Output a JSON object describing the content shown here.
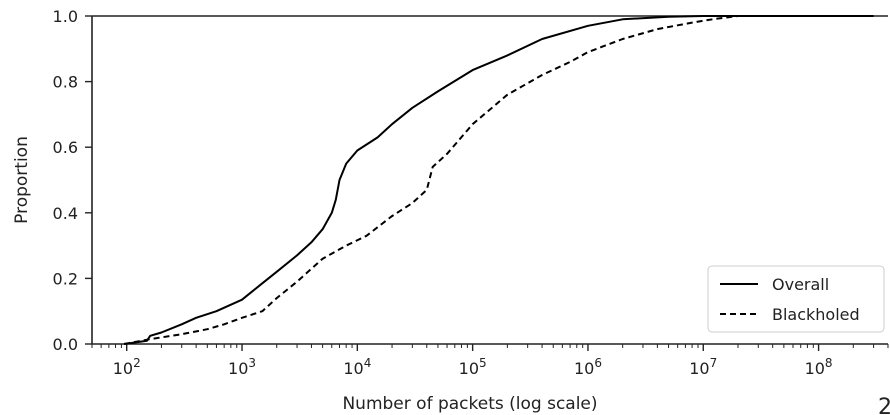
{
  "chart_data": {
    "type": "line",
    "title": "",
    "xlabel": "Number of packets (log scale)",
    "ylabel": "Proportion",
    "x_scale": "log",
    "xlim": [
      50,
      400000000
    ],
    "ylim": [
      0,
      1.0
    ],
    "x_ticks": [
      {
        "value": 100,
        "base": "10",
        "exp": "2"
      },
      {
        "value": 1000,
        "base": "10",
        "exp": "3"
      },
      {
        "value": 10000,
        "base": "10",
        "exp": "4"
      },
      {
        "value": 100000,
        "base": "10",
        "exp": "5"
      },
      {
        "value": 1000000,
        "base": "10",
        "exp": "6"
      },
      {
        "value": 10000000,
        "base": "10",
        "exp": "7"
      },
      {
        "value": 100000000,
        "base": "10",
        "exp": "8"
      }
    ],
    "y_ticks": [
      "0.0",
      "0.2",
      "0.4",
      "0.6",
      "0.8",
      "1.0"
    ],
    "grid": false,
    "legend_position": "bottom-right",
    "series": [
      {
        "name": "Overall",
        "style": "solid",
        "color": "#000000",
        "points": [
          [
            95,
            0.0
          ],
          [
            150,
            0.01
          ],
          [
            160,
            0.025
          ],
          [
            200,
            0.035
          ],
          [
            300,
            0.06
          ],
          [
            400,
            0.08
          ],
          [
            600,
            0.1
          ],
          [
            1000,
            0.135
          ],
          [
            1500,
            0.185
          ],
          [
            2000,
            0.22
          ],
          [
            3000,
            0.27
          ],
          [
            4000,
            0.31
          ],
          [
            5000,
            0.35
          ],
          [
            6000,
            0.4
          ],
          [
            6500,
            0.44
          ],
          [
            7000,
            0.5
          ],
          [
            8000,
            0.55
          ],
          [
            10000,
            0.59
          ],
          [
            15000,
            0.63
          ],
          [
            20000,
            0.67
          ],
          [
            30000,
            0.72
          ],
          [
            50000,
            0.77
          ],
          [
            100000,
            0.835
          ],
          [
            200000,
            0.88
          ],
          [
            400000,
            0.93
          ],
          [
            1000000,
            0.97
          ],
          [
            2000000,
            0.99
          ],
          [
            5000000,
            0.998
          ],
          [
            10000000,
            1.0
          ],
          [
            300000000,
            1.0
          ]
        ]
      },
      {
        "name": "Blackholed",
        "style": "dashed",
        "color": "#000000",
        "points": [
          [
            95,
            0.0
          ],
          [
            160,
            0.015
          ],
          [
            200,
            0.02
          ],
          [
            300,
            0.03
          ],
          [
            500,
            0.045
          ],
          [
            700,
            0.06
          ],
          [
            1000,
            0.08
          ],
          [
            1500,
            0.1
          ],
          [
            2000,
            0.14
          ],
          [
            3000,
            0.19
          ],
          [
            5000,
            0.26
          ],
          [
            8000,
            0.3
          ],
          [
            12000,
            0.33
          ],
          [
            20000,
            0.39
          ],
          [
            30000,
            0.43
          ],
          [
            40000,
            0.47
          ],
          [
            45000,
            0.54
          ],
          [
            60000,
            0.58
          ],
          [
            100000,
            0.67
          ],
          [
            200000,
            0.76
          ],
          [
            400000,
            0.82
          ],
          [
            700000,
            0.86
          ],
          [
            1000000,
            0.89
          ],
          [
            2000000,
            0.93
          ],
          [
            4000000,
            0.96
          ],
          [
            8000000,
            0.98
          ],
          [
            12000000,
            0.99
          ],
          [
            20000000,
            1.0
          ],
          [
            300000000,
            1.0
          ]
        ]
      }
    ]
  },
  "corner_text": "2"
}
